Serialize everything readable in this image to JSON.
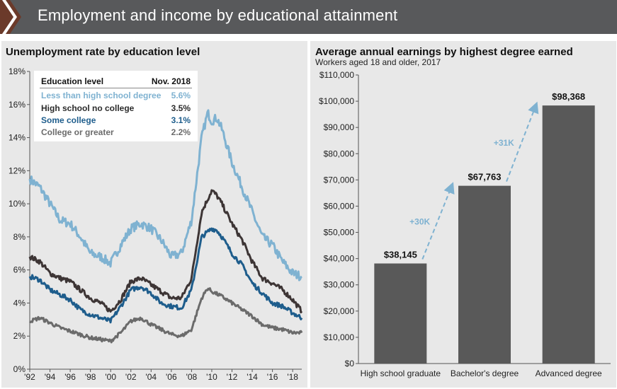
{
  "header": {
    "title": "Employment and income by educational attainment"
  },
  "colors": {
    "less_than_hs": "#7fb2d1",
    "hs_no_college": "#3d3535",
    "some_college": "#1e5d8c",
    "college_or_greater": "#6b6b6b",
    "bar": "#595959",
    "arrow": "#7fb2d1"
  },
  "left_chart": {
    "title": "Unemployment rate by education level",
    "legend": {
      "header_label": "Education level",
      "header_value": "Nov. 2018",
      "rows": [
        {
          "label": "Less than high school degree",
          "value": "5.6%"
        },
        {
          "label": "High school no college",
          "value": "3.5%"
        },
        {
          "label": "Some college",
          "value": "3.1%"
        },
        {
          "label": "College or greater",
          "value": "2.2%"
        }
      ]
    }
  },
  "right_chart": {
    "title": "Average annual earnings by highest degree earned",
    "subtitle": "Workers aged 18 and older, 2017",
    "annotations": [
      "+30K",
      "+31K"
    ]
  },
  "chart_data": [
    {
      "type": "line",
      "title": "Unemployment rate by education level",
      "ylim": [
        0,
        18
      ],
      "yticks": [
        "0%",
        "2%",
        "4%",
        "6%",
        "8%",
        "10%",
        "12%",
        "14%",
        "16%",
        "18%"
      ],
      "xticks": [
        "'92",
        "'94",
        "'96",
        "'98",
        "'00",
        "'02",
        "'04",
        "'06",
        "'08",
        "'10",
        "'12",
        "'14",
        "'16",
        "'18"
      ],
      "xrange": [
        1992,
        2018.9
      ],
      "grid": false,
      "series": [
        {
          "name": "Less than high school degree",
          "x": [
            1992,
            1993,
            1994,
            1995,
            1996,
            1997,
            1998,
            1999,
            2000,
            2001,
            2002,
            2003,
            2004,
            2005,
            2006,
            2007,
            2008,
            2009,
            2009.6,
            2010,
            2010.5,
            2011,
            2012,
            2013,
            2014,
            2015,
            2016,
            2017,
            2018,
            2018.9
          ],
          "y": [
            11.5,
            11.0,
            10.0,
            9.0,
            8.8,
            8.0,
            7.0,
            6.8,
            6.4,
            7.5,
            8.5,
            8.8,
            8.5,
            7.8,
            6.8,
            7.0,
            9.0,
            14.0,
            15.5,
            15.0,
            15.2,
            14.5,
            12.5,
            11.0,
            9.5,
            8.0,
            7.5,
            6.5,
            5.8,
            5.6
          ]
        },
        {
          "name": "High school no college",
          "x": [
            1992,
            1993,
            1994,
            1995,
            1996,
            1997,
            1998,
            1999,
            2000,
            2001,
            2002,
            2003,
            2004,
            2005,
            2006,
            2007,
            2008,
            2009,
            2010,
            2010.5,
            2011,
            2012,
            2013,
            2014,
            2015,
            2016,
            2017,
            2018,
            2018.9
          ],
          "y": [
            6.8,
            6.5,
            5.8,
            5.5,
            5.3,
            4.8,
            4.3,
            4.0,
            3.5,
            4.2,
            5.3,
            5.5,
            5.1,
            4.7,
            4.3,
            4.3,
            5.5,
            9.5,
            10.8,
            10.5,
            10.0,
            8.8,
            7.8,
            6.5,
            5.5,
            5.2,
            4.8,
            4.2,
            3.5
          ]
        },
        {
          "name": "Some college",
          "x": [
            1992,
            1993,
            1994,
            1995,
            1996,
            1997,
            1998,
            1999,
            2000,
            2001,
            2002,
            2003,
            2004,
            2005,
            2006,
            2007,
            2008,
            2009,
            2010,
            2010.5,
            2011,
            2012,
            2013,
            2014,
            2015,
            2016,
            2017,
            2018,
            2018.9
          ],
          "y": [
            5.6,
            5.4,
            4.8,
            4.5,
            4.2,
            3.6,
            3.3,
            3.1,
            2.9,
            3.8,
            4.8,
            5.0,
            4.6,
            4.0,
            3.8,
            3.7,
            4.8,
            8.0,
            8.5,
            8.4,
            8.0,
            7.0,
            6.3,
            5.2,
            4.6,
            4.0,
            3.8,
            3.4,
            3.1
          ]
        },
        {
          "name": "College or greater",
          "x": [
            1992,
            1993,
            1994,
            1995,
            1996,
            1997,
            1998,
            1999,
            2000,
            2001,
            2002,
            2003,
            2004,
            2005,
            2006,
            2007,
            2008,
            2009,
            2009.6,
            2010,
            2011,
            2012,
            2013,
            2014,
            2015,
            2016,
            2017,
            2018,
            2018.9
          ],
          "y": [
            2.9,
            3.1,
            2.8,
            2.5,
            2.3,
            2.1,
            1.9,
            1.8,
            1.7,
            2.2,
            2.9,
            3.1,
            2.7,
            2.4,
            2.1,
            2.0,
            2.4,
            4.3,
            4.9,
            4.7,
            4.4,
            4.0,
            3.6,
            3.2,
            2.7,
            2.5,
            2.4,
            2.2,
            2.2
          ]
        }
      ]
    },
    {
      "type": "bar",
      "title": "Average annual earnings by highest degree earned",
      "subtitle": "Workers aged 18 and older, 2017",
      "categories": [
        "High school graduate",
        "Bachelor's degree",
        "Advanced degree"
      ],
      "values": [
        38145,
        67763,
        98368
      ],
      "value_labels": [
        "$38,145",
        "$67,763",
        "$98,368"
      ],
      "ylim": [
        0,
        110000
      ],
      "yticks": [
        "$0",
        "$10,000",
        "$20,000",
        "$30,000",
        "$40,000",
        "$50,000",
        "$60,000",
        "$70,000",
        "$80,000",
        "$90,000",
        "$100,000",
        "$110,000"
      ],
      "annotations": [
        "+30K",
        "+31K"
      ],
      "grid": false
    }
  ]
}
